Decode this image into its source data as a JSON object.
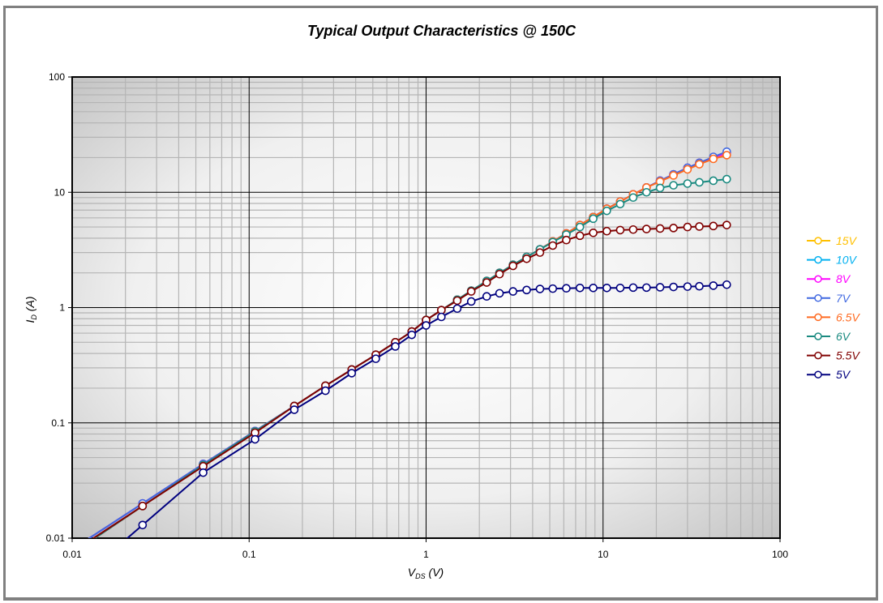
{
  "chart_data": {
    "type": "line",
    "title": "Typical Output Characteristics @ 150C",
    "xlabel": "V_DS (V)",
    "ylabel": "I_D (A)",
    "xscale": "log",
    "yscale": "log",
    "xlim": [
      0.01,
      100
    ],
    "ylim": [
      0.01,
      100
    ],
    "xticks": [
      "0.01",
      "0.1",
      "1",
      "10",
      "100"
    ],
    "yticks": [
      "0.01",
      "0.1",
      "1",
      "10",
      "100"
    ],
    "grid": true,
    "legend_position": "right",
    "x": [
      0.025,
      0.055,
      0.108,
      0.18,
      0.27,
      0.38,
      0.52,
      0.67,
      0.83,
      1.0,
      1.22,
      1.5,
      1.8,
      2.2,
      2.6,
      3.1,
      3.7,
      4.4,
      5.2,
      6.2,
      7.4,
      8.8,
      10.5,
      12.5,
      14.8,
      17.6,
      21,
      25,
      30,
      35,
      42,
      50
    ],
    "series": [
      {
        "name": "15V",
        "color": "#FFC000",
        "values": [
          0.02,
          0.044,
          0.085,
          0.14,
          0.21,
          0.29,
          0.39,
          0.5,
          0.62,
          0.78,
          0.95,
          1.17,
          1.4,
          1.7,
          2.0,
          2.35,
          2.75,
          3.2,
          3.75,
          4.4,
          5.2,
          6.1,
          7.2,
          8.3,
          9.6,
          11.0,
          12.6,
          14.3,
          16.3,
          18.0,
          20.0,
          22.0
        ]
      },
      {
        "name": "10V",
        "color": "#00B0F0",
        "values": [
          0.02,
          0.044,
          0.085,
          0.14,
          0.21,
          0.29,
          0.39,
          0.5,
          0.62,
          0.78,
          0.95,
          1.17,
          1.4,
          1.7,
          2.0,
          2.35,
          2.75,
          3.2,
          3.75,
          4.4,
          5.2,
          6.1,
          7.2,
          8.3,
          9.6,
          11.0,
          12.6,
          14.3,
          16.3,
          18.0,
          20.0,
          22.0
        ]
      },
      {
        "name": "8V",
        "color": "#FF00FF",
        "values": [
          0.02,
          0.044,
          0.085,
          0.14,
          0.21,
          0.29,
          0.39,
          0.5,
          0.62,
          0.78,
          0.95,
          1.17,
          1.4,
          1.7,
          2.0,
          2.35,
          2.75,
          3.2,
          3.75,
          4.4,
          5.2,
          6.1,
          7.2,
          8.3,
          9.6,
          11.0,
          12.6,
          14.3,
          16.3,
          18.0,
          20.0,
          22.0
        ]
      },
      {
        "name": "7V",
        "color": "#4169E1",
        "values": [
          0.02,
          0.044,
          0.085,
          0.14,
          0.21,
          0.29,
          0.39,
          0.5,
          0.62,
          0.78,
          0.95,
          1.17,
          1.4,
          1.7,
          2.0,
          2.35,
          2.75,
          3.2,
          3.75,
          4.4,
          5.2,
          6.1,
          7.2,
          8.3,
          9.6,
          11.0,
          12.6,
          14.3,
          16.3,
          18.0,
          20.3,
          22.5
        ]
      },
      {
        "name": "6.5V",
        "color": "#FF6A20",
        "values": [
          0.019,
          0.043,
          0.084,
          0.14,
          0.21,
          0.29,
          0.39,
          0.5,
          0.62,
          0.78,
          0.95,
          1.17,
          1.4,
          1.7,
          2.0,
          2.35,
          2.75,
          3.2,
          3.75,
          4.4,
          5.2,
          6.1,
          7.2,
          8.3,
          9.6,
          11.0,
          12.4,
          14.0,
          15.8,
          17.5,
          19.5,
          21.0
        ]
      },
      {
        "name": "6V",
        "color": "#1A8A80",
        "values": [
          0.019,
          0.043,
          0.084,
          0.14,
          0.21,
          0.29,
          0.39,
          0.5,
          0.62,
          0.78,
          0.95,
          1.17,
          1.4,
          1.7,
          2.0,
          2.35,
          2.75,
          3.2,
          3.7,
          4.3,
          5.0,
          5.9,
          6.9,
          7.9,
          9.0,
          10.0,
          10.9,
          11.5,
          11.9,
          12.2,
          12.6,
          13.0
        ]
      },
      {
        "name": "5.5V",
        "color": "#800000",
        "values": [
          0.019,
          0.042,
          0.082,
          0.14,
          0.21,
          0.29,
          0.39,
          0.5,
          0.62,
          0.78,
          0.95,
          1.15,
          1.38,
          1.65,
          1.95,
          2.3,
          2.65,
          3.0,
          3.45,
          3.85,
          4.2,
          4.45,
          4.6,
          4.7,
          4.75,
          4.8,
          4.85,
          4.9,
          5.0,
          5.05,
          5.1,
          5.2
        ]
      },
      {
        "name": "5V",
        "color": "#00007F",
        "values": [
          0.013,
          0.037,
          0.072,
          0.13,
          0.19,
          0.27,
          0.36,
          0.46,
          0.58,
          0.7,
          0.83,
          0.98,
          1.13,
          1.25,
          1.33,
          1.38,
          1.42,
          1.45,
          1.46,
          1.47,
          1.48,
          1.48,
          1.48,
          1.48,
          1.49,
          1.49,
          1.5,
          1.51,
          1.52,
          1.53,
          1.55,
          1.58
        ]
      }
    ]
  }
}
